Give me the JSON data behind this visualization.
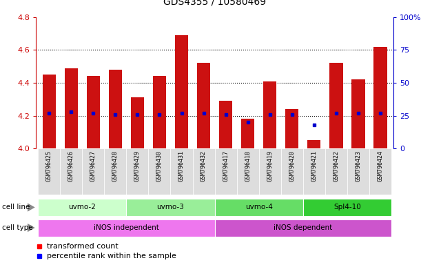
{
  "title": "GDS4355 / 10580469",
  "samples": [
    "GSM796425",
    "GSM796426",
    "GSM796427",
    "GSM796428",
    "GSM796429",
    "GSM796430",
    "GSM796431",
    "GSM796432",
    "GSM796417",
    "GSM796418",
    "GSM796419",
    "GSM796420",
    "GSM796421",
    "GSM796422",
    "GSM796423",
    "GSM796424"
  ],
  "transformed_counts": [
    4.45,
    4.49,
    4.44,
    4.48,
    4.31,
    4.44,
    4.69,
    4.52,
    4.29,
    4.18,
    4.41,
    4.24,
    4.05,
    4.52,
    4.42,
    4.62
  ],
  "percentile_ranks": [
    27,
    28,
    27,
    26,
    26,
    26,
    27,
    27,
    26,
    20,
    26,
    26,
    18,
    27,
    27,
    27
  ],
  "cell_lines": [
    {
      "label": "uvmo-2",
      "start": 0,
      "end": 3,
      "color": "#ccffcc"
    },
    {
      "label": "uvmo-3",
      "start": 4,
      "end": 7,
      "color": "#99ee99"
    },
    {
      "label": "uvmo-4",
      "start": 8,
      "end": 11,
      "color": "#66dd66"
    },
    {
      "label": "Spl4-10",
      "start": 12,
      "end": 15,
      "color": "#33cc33"
    }
  ],
  "cell_types": [
    {
      "label": "iNOS independent",
      "start": 0,
      "end": 7,
      "color": "#ee77ee"
    },
    {
      "label": "iNOS dependent",
      "start": 8,
      "end": 15,
      "color": "#cc55cc"
    }
  ],
  "ylim_left": [
    4.0,
    4.8
  ],
  "ylim_right": [
    0,
    100
  ],
  "yticks_left": [
    4.0,
    4.2,
    4.4,
    4.6,
    4.8
  ],
  "yticks_right": [
    0,
    25,
    50,
    75,
    100
  ],
  "bar_color": "#cc1111",
  "dot_color": "#0000cc",
  "bar_bottom": 4.0,
  "bar_width": 0.6,
  "gridline_y": [
    4.2,
    4.4,
    4.6
  ],
  "xtick_bg": "#dddddd",
  "label_color_left": "#cc0000",
  "label_color_right": "#0000cc",
  "arrow_color": "#888888"
}
